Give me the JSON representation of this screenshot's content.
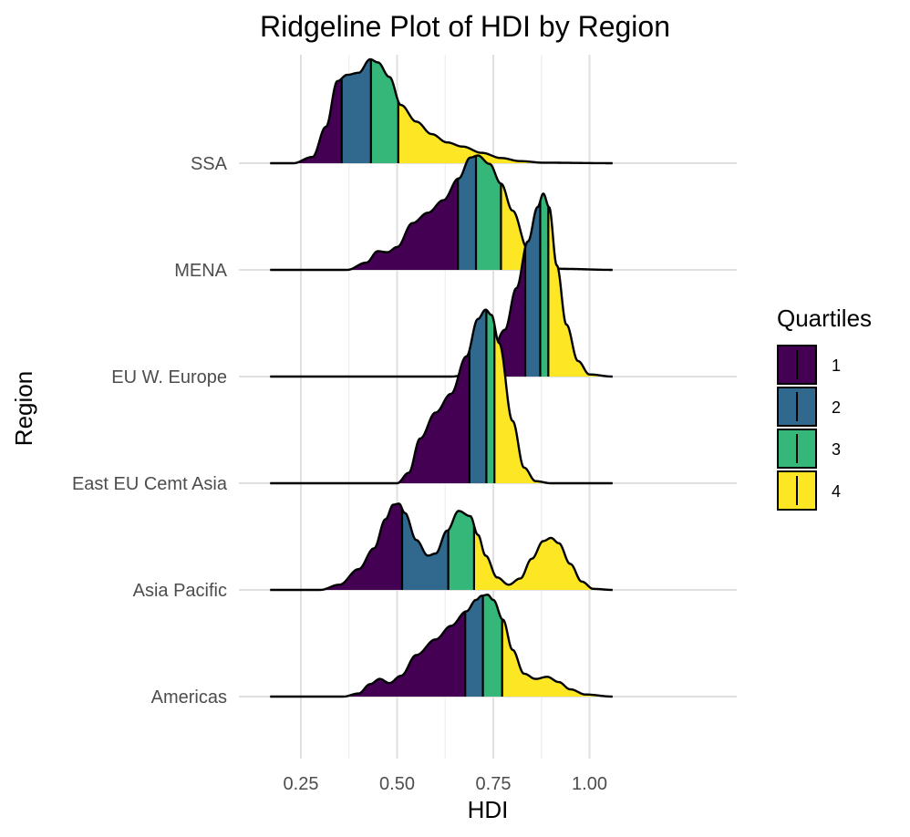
{
  "chart_data": {
    "type": "area",
    "title": "Ridgeline Plot of HDI by Region",
    "xlabel": "HDI",
    "ylabel": "Region",
    "xlim": [
      0.17,
      1.06
    ],
    "x_ticks": [
      0.25,
      0.5,
      0.75,
      1.0
    ],
    "x_tick_labels": [
      "0.25",
      "0.50",
      "0.75",
      "1.00"
    ],
    "grid": true,
    "legend": {
      "title": "Quartiles",
      "position": "right",
      "items": [
        {
          "label": "1",
          "color": "#440154"
        },
        {
          "label": "2",
          "color": "#31688E"
        },
        {
          "label": "3",
          "color": "#35B779"
        },
        {
          "label": "4",
          "color": "#FDE725"
        }
      ]
    },
    "categories": [
      "Americas",
      "Asia Pacific",
      "East EU Cemt Asia",
      "EU W. Europe",
      "MENA",
      "SSA"
    ],
    "series": [
      {
        "name": "Americas",
        "quartiles": [
          0.677,
          0.723,
          0.773
        ],
        "density": [
          [
            0.17,
            0
          ],
          [
            0.36,
            0
          ],
          [
            0.4,
            0.03
          ],
          [
            0.43,
            0.12
          ],
          [
            0.455,
            0.17
          ],
          [
            0.48,
            0.13
          ],
          [
            0.51,
            0.2
          ],
          [
            0.55,
            0.4
          ],
          [
            0.6,
            0.55
          ],
          [
            0.64,
            0.68
          ],
          [
            0.68,
            0.82
          ],
          [
            0.705,
            0.93
          ],
          [
            0.72,
            0.97
          ],
          [
            0.735,
            0.98
          ],
          [
            0.75,
            0.93
          ],
          [
            0.775,
            0.74
          ],
          [
            0.8,
            0.45
          ],
          [
            0.83,
            0.22
          ],
          [
            0.86,
            0.17
          ],
          [
            0.89,
            0.19
          ],
          [
            0.92,
            0.14
          ],
          [
            0.95,
            0.07
          ],
          [
            0.99,
            0.02
          ],
          [
            1.06,
            0
          ]
        ]
      },
      {
        "name": "Asia Pacific",
        "quartiles": [
          0.513,
          0.633,
          0.7
        ],
        "density": [
          [
            0.17,
            0
          ],
          [
            0.3,
            0
          ],
          [
            0.35,
            0.05
          ],
          [
            0.4,
            0.2
          ],
          [
            0.44,
            0.4
          ],
          [
            0.47,
            0.68
          ],
          [
            0.49,
            0.82
          ],
          [
            0.505,
            0.83
          ],
          [
            0.52,
            0.74
          ],
          [
            0.55,
            0.48
          ],
          [
            0.58,
            0.33
          ],
          [
            0.6,
            0.35
          ],
          [
            0.63,
            0.57
          ],
          [
            0.66,
            0.76
          ],
          [
            0.69,
            0.71
          ],
          [
            0.71,
            0.53
          ],
          [
            0.73,
            0.33
          ],
          [
            0.76,
            0.12
          ],
          [
            0.79,
            0.05
          ],
          [
            0.82,
            0.11
          ],
          [
            0.85,
            0.3
          ],
          [
            0.88,
            0.47
          ],
          [
            0.9,
            0.5
          ],
          [
            0.92,
            0.45
          ],
          [
            0.95,
            0.25
          ],
          [
            0.98,
            0.08
          ],
          [
            1.01,
            0.01
          ],
          [
            1.06,
            0
          ]
        ]
      },
      {
        "name": "East EU Cemt Asia",
        "quartiles": [
          0.688,
          0.732,
          0.753
        ],
        "density": [
          [
            0.17,
            0
          ],
          [
            0.5,
            0
          ],
          [
            0.53,
            0.1
          ],
          [
            0.56,
            0.43
          ],
          [
            0.6,
            0.68
          ],
          [
            0.64,
            0.86
          ],
          [
            0.68,
            1.22
          ],
          [
            0.71,
            1.58
          ],
          [
            0.73,
            1.67
          ],
          [
            0.745,
            1.62
          ],
          [
            0.765,
            1.35
          ],
          [
            0.8,
            0.6
          ],
          [
            0.83,
            0.15
          ],
          [
            0.86,
            0.02
          ],
          [
            0.9,
            0
          ],
          [
            1.06,
            0
          ]
        ]
      },
      {
        "name": "EU W. Europe",
        "quartiles": [
          0.833,
          0.872,
          0.893
        ],
        "density": [
          [
            0.17,
            0
          ],
          [
            0.64,
            0
          ],
          [
            0.7,
            0.03
          ],
          [
            0.74,
            0.18
          ],
          [
            0.78,
            0.45
          ],
          [
            0.81,
            0.85
          ],
          [
            0.84,
            1.3
          ],
          [
            0.865,
            1.63
          ],
          [
            0.88,
            1.76
          ],
          [
            0.895,
            1.63
          ],
          [
            0.915,
            1.07
          ],
          [
            0.94,
            0.5
          ],
          [
            0.97,
            0.15
          ],
          [
            1.0,
            0.02
          ],
          [
            1.06,
            0
          ]
        ]
      },
      {
        "name": "MENA",
        "quartiles": [
          0.658,
          0.705,
          0.77
        ],
        "density": [
          [
            0.17,
            0
          ],
          [
            0.37,
            0
          ],
          [
            0.42,
            0.07
          ],
          [
            0.45,
            0.18
          ],
          [
            0.475,
            0.17
          ],
          [
            0.5,
            0.22
          ],
          [
            0.54,
            0.45
          ],
          [
            0.58,
            0.55
          ],
          [
            0.62,
            0.67
          ],
          [
            0.66,
            0.88
          ],
          [
            0.69,
            1.08
          ],
          [
            0.71,
            1.1
          ],
          [
            0.74,
            1.02
          ],
          [
            0.77,
            0.83
          ],
          [
            0.8,
            0.57
          ],
          [
            0.84,
            0.2
          ],
          [
            0.88,
            0.05
          ],
          [
            0.93,
            0.01
          ],
          [
            1.06,
            0
          ]
        ]
      },
      {
        "name": "SSA",
        "quartiles": [
          0.356,
          0.432,
          0.503
        ],
        "density": [
          [
            0.17,
            0
          ],
          [
            0.23,
            0
          ],
          [
            0.28,
            0.06
          ],
          [
            0.315,
            0.35
          ],
          [
            0.345,
            0.79
          ],
          [
            0.37,
            0.85
          ],
          [
            0.4,
            0.87
          ],
          [
            0.43,
            1.0
          ],
          [
            0.45,
            0.97
          ],
          [
            0.48,
            0.83
          ],
          [
            0.51,
            0.56
          ],
          [
            0.55,
            0.4
          ],
          [
            0.59,
            0.28
          ],
          [
            0.63,
            0.2
          ],
          [
            0.67,
            0.16
          ],
          [
            0.72,
            0.1
          ],
          [
            0.77,
            0.05
          ],
          [
            0.82,
            0.02
          ],
          [
            0.88,
            0.005
          ],
          [
            1.06,
            0
          ]
        ]
      }
    ]
  }
}
